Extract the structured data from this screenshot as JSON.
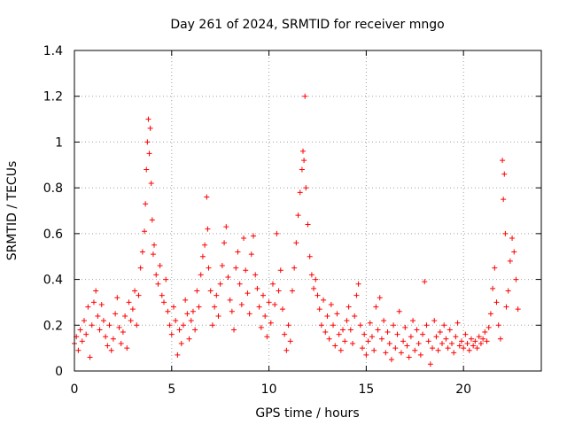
{
  "chart_data": {
    "type": "scatter",
    "title": "Day 261 of 2024, SRMTID for receiver mngo",
    "xlabel": "GPS time / hours",
    "ylabel": "SRMTID / TECUs",
    "xlim": [
      0,
      24
    ],
    "ylim": [
      0,
      1.4
    ],
    "grid": true,
    "marker": "+",
    "marker_color": "#ff0000",
    "xticks": [
      0,
      5,
      10,
      15,
      20
    ],
    "xtick_labels": [
      "0",
      "5",
      "10",
      "15",
      "20"
    ],
    "yticks": [
      0,
      0.2,
      0.4,
      0.6,
      0.8,
      1.0,
      1.2,
      1.4
    ],
    "ytick_labels": [
      "0",
      "0.2",
      "0.4",
      "0.6",
      "0.8",
      "1",
      "1.2",
      "1.4"
    ],
    "series": [
      {
        "name": "mngo",
        "points": [
          [
            0.0,
            0.12
          ],
          [
            0.1,
            0.15
          ],
          [
            0.2,
            0.09
          ],
          [
            0.3,
            0.18
          ],
          [
            0.4,
            0.13
          ],
          [
            0.5,
            0.22
          ],
          [
            0.6,
            0.16
          ],
          [
            0.7,
            0.28
          ],
          [
            0.8,
            0.06
          ],
          [
            0.9,
            0.2
          ],
          [
            1.0,
            0.3
          ],
          [
            1.1,
            0.35
          ],
          [
            1.2,
            0.24
          ],
          [
            1.3,
            0.18
          ],
          [
            1.4,
            0.29
          ],
          [
            1.5,
            0.22
          ],
          [
            1.6,
            0.15
          ],
          [
            1.7,
            0.11
          ],
          [
            1.8,
            0.2
          ],
          [
            1.9,
            0.09
          ],
          [
            2.0,
            0.14
          ],
          [
            2.1,
            0.25
          ],
          [
            2.2,
            0.32
          ],
          [
            2.3,
            0.19
          ],
          [
            2.4,
            0.12
          ],
          [
            2.5,
            0.17
          ],
          [
            2.6,
            0.24
          ],
          [
            2.7,
            0.1
          ],
          [
            2.8,
            0.3
          ],
          [
            2.9,
            0.22
          ],
          [
            3.0,
            0.27
          ],
          [
            3.1,
            0.35
          ],
          [
            3.2,
            0.2
          ],
          [
            3.3,
            0.33
          ],
          [
            3.4,
            0.45
          ],
          [
            3.5,
            0.52
          ],
          [
            3.6,
            0.61
          ],
          [
            3.65,
            0.73
          ],
          [
            3.7,
            0.88
          ],
          [
            3.75,
            1.0
          ],
          [
            3.8,
            1.1
          ],
          [
            3.85,
            0.95
          ],
          [
            3.9,
            1.06
          ],
          [
            3.95,
            0.82
          ],
          [
            4.0,
            0.66
          ],
          [
            4.05,
            0.51
          ],
          [
            4.1,
            0.55
          ],
          [
            4.2,
            0.42
          ],
          [
            4.3,
            0.38
          ],
          [
            4.4,
            0.46
          ],
          [
            4.5,
            0.33
          ],
          [
            4.6,
            0.3
          ],
          [
            4.7,
            0.4
          ],
          [
            4.8,
            0.26
          ],
          [
            4.9,
            0.2
          ],
          [
            5.0,
            0.16
          ],
          [
            5.1,
            0.28
          ],
          [
            5.2,
            0.22
          ],
          [
            5.3,
            0.07
          ],
          [
            5.4,
            0.18
          ],
          [
            5.5,
            0.12
          ],
          [
            5.6,
            0.2
          ],
          [
            5.7,
            0.31
          ],
          [
            5.8,
            0.25
          ],
          [
            5.9,
            0.14
          ],
          [
            6.0,
            0.22
          ],
          [
            6.1,
            0.26
          ],
          [
            6.2,
            0.18
          ],
          [
            6.3,
            0.35
          ],
          [
            6.4,
            0.28
          ],
          [
            6.5,
            0.42
          ],
          [
            6.6,
            0.5
          ],
          [
            6.7,
            0.55
          ],
          [
            6.8,
            0.76
          ],
          [
            6.85,
            0.62
          ],
          [
            6.9,
            0.45
          ],
          [
            7.0,
            0.35
          ],
          [
            7.1,
            0.2
          ],
          [
            7.2,
            0.28
          ],
          [
            7.3,
            0.33
          ],
          [
            7.4,
            0.24
          ],
          [
            7.5,
            0.38
          ],
          [
            7.6,
            0.46
          ],
          [
            7.7,
            0.56
          ],
          [
            7.8,
            0.63
          ],
          [
            7.9,
            0.41
          ],
          [
            8.0,
            0.31
          ],
          [
            8.1,
            0.26
          ],
          [
            8.2,
            0.18
          ],
          [
            8.3,
            0.45
          ],
          [
            8.4,
            0.52
          ],
          [
            8.5,
            0.38
          ],
          [
            8.6,
            0.29
          ],
          [
            8.7,
            0.58
          ],
          [
            8.8,
            0.44
          ],
          [
            8.9,
            0.34
          ],
          [
            9.0,
            0.25
          ],
          [
            9.1,
            0.51
          ],
          [
            9.2,
            0.59
          ],
          [
            9.3,
            0.42
          ],
          [
            9.4,
            0.36
          ],
          [
            9.5,
            0.28
          ],
          [
            9.6,
            0.19
          ],
          [
            9.7,
            0.33
          ],
          [
            9.8,
            0.24
          ],
          [
            9.9,
            0.15
          ],
          [
            10.0,
            0.3
          ],
          [
            10.1,
            0.21
          ],
          [
            10.2,
            0.38
          ],
          [
            10.3,
            0.29
          ],
          [
            10.4,
            0.6
          ],
          [
            10.5,
            0.35
          ],
          [
            10.6,
            0.44
          ],
          [
            10.7,
            0.27
          ],
          [
            10.8,
            0.16
          ],
          [
            10.9,
            0.09
          ],
          [
            11.0,
            0.2
          ],
          [
            11.1,
            0.13
          ],
          [
            11.2,
            0.35
          ],
          [
            11.3,
            0.45
          ],
          [
            11.4,
            0.56
          ],
          [
            11.5,
            0.68
          ],
          [
            11.6,
            0.78
          ],
          [
            11.7,
            0.88
          ],
          [
            11.75,
            0.96
          ],
          [
            11.8,
            0.92
          ],
          [
            11.9,
            0.8
          ],
          [
            12.0,
            0.64
          ],
          [
            12.1,
            0.5
          ],
          [
            12.2,
            0.42
          ],
          [
            11.85,
            1.2
          ],
          [
            12.3,
            0.36
          ],
          [
            12.4,
            0.4
          ],
          [
            12.5,
            0.33
          ],
          [
            12.6,
            0.27
          ],
          [
            12.7,
            0.2
          ],
          [
            12.8,
            0.31
          ],
          [
            12.9,
            0.17
          ],
          [
            13.0,
            0.24
          ],
          [
            13.1,
            0.14
          ],
          [
            13.2,
            0.29
          ],
          [
            13.3,
            0.2
          ],
          [
            13.4,
            0.11
          ],
          [
            13.5,
            0.25
          ],
          [
            13.6,
            0.16
          ],
          [
            13.7,
            0.09
          ],
          [
            13.8,
            0.18
          ],
          [
            13.9,
            0.13
          ],
          [
            14.0,
            0.22
          ],
          [
            14.1,
            0.28
          ],
          [
            14.2,
            0.18
          ],
          [
            14.3,
            0.12
          ],
          [
            14.4,
            0.24
          ],
          [
            14.5,
            0.33
          ],
          [
            14.6,
            0.38
          ],
          [
            14.7,
            0.2
          ],
          [
            14.8,
            0.1
          ],
          [
            14.9,
            0.16
          ],
          [
            15.0,
            0.07
          ],
          [
            15.1,
            0.13
          ],
          [
            15.2,
            0.21
          ],
          [
            15.3,
            0.15
          ],
          [
            15.4,
            0.09
          ],
          [
            15.5,
            0.28
          ],
          [
            15.6,
            0.18
          ],
          [
            15.7,
            0.32
          ],
          [
            15.8,
            0.14
          ],
          [
            15.9,
            0.22
          ],
          [
            16.0,
            0.08
          ],
          [
            16.1,
            0.17
          ],
          [
            16.2,
            0.12
          ],
          [
            16.3,
            0.05
          ],
          [
            16.4,
            0.2
          ],
          [
            16.5,
            0.1
          ],
          [
            16.6,
            0.16
          ],
          [
            16.7,
            0.26
          ],
          [
            16.8,
            0.08
          ],
          [
            16.9,
            0.13
          ],
          [
            17.0,
            0.19
          ],
          [
            17.1,
            0.11
          ],
          [
            17.2,
            0.06
          ],
          [
            17.3,
            0.15
          ],
          [
            17.4,
            0.22
          ],
          [
            17.5,
            0.09
          ],
          [
            17.6,
            0.18
          ],
          [
            17.7,
            0.12
          ],
          [
            17.8,
            0.07
          ],
          [
            17.9,
            0.16
          ],
          [
            18.0,
            0.39
          ],
          [
            18.1,
            0.2
          ],
          [
            18.2,
            0.13
          ],
          [
            18.3,
            0.03
          ],
          [
            18.4,
            0.1
          ],
          [
            18.5,
            0.22
          ],
          [
            18.6,
            0.15
          ],
          [
            18.7,
            0.09
          ],
          [
            18.8,
            0.17
          ],
          [
            18.9,
            0.12
          ],
          [
            19.0,
            0.2
          ],
          [
            19.1,
            0.14
          ],
          [
            19.2,
            0.1
          ],
          [
            19.3,
            0.18
          ],
          [
            19.4,
            0.12
          ],
          [
            19.5,
            0.08
          ],
          [
            19.6,
            0.15
          ],
          [
            19.7,
            0.21
          ],
          [
            19.8,
            0.11
          ],
          [
            19.9,
            0.13
          ],
          [
            20.0,
            0.1
          ],
          [
            20.1,
            0.16
          ],
          [
            20.2,
            0.12
          ],
          [
            20.3,
            0.09
          ],
          [
            20.4,
            0.14
          ],
          [
            20.5,
            0.11
          ],
          [
            20.6,
            0.13
          ],
          [
            20.7,
            0.1
          ],
          [
            20.8,
            0.15
          ],
          [
            20.9,
            0.12
          ],
          [
            21.0,
            0.14
          ],
          [
            21.1,
            0.17
          ],
          [
            21.2,
            0.13
          ],
          [
            21.3,
            0.19
          ],
          [
            21.4,
            0.25
          ],
          [
            21.5,
            0.36
          ],
          [
            21.6,
            0.45
          ],
          [
            21.7,
            0.3
          ],
          [
            21.8,
            0.2
          ],
          [
            21.9,
            0.14
          ],
          [
            22.0,
            0.92
          ],
          [
            22.05,
            0.75
          ],
          [
            22.1,
            0.86
          ],
          [
            22.15,
            0.6
          ],
          [
            22.2,
            0.28
          ],
          [
            22.3,
            0.35
          ],
          [
            22.4,
            0.48
          ],
          [
            22.5,
            0.58
          ],
          [
            22.6,
            0.52
          ],
          [
            22.7,
            0.4
          ],
          [
            22.8,
            0.27
          ]
        ]
      }
    ]
  }
}
